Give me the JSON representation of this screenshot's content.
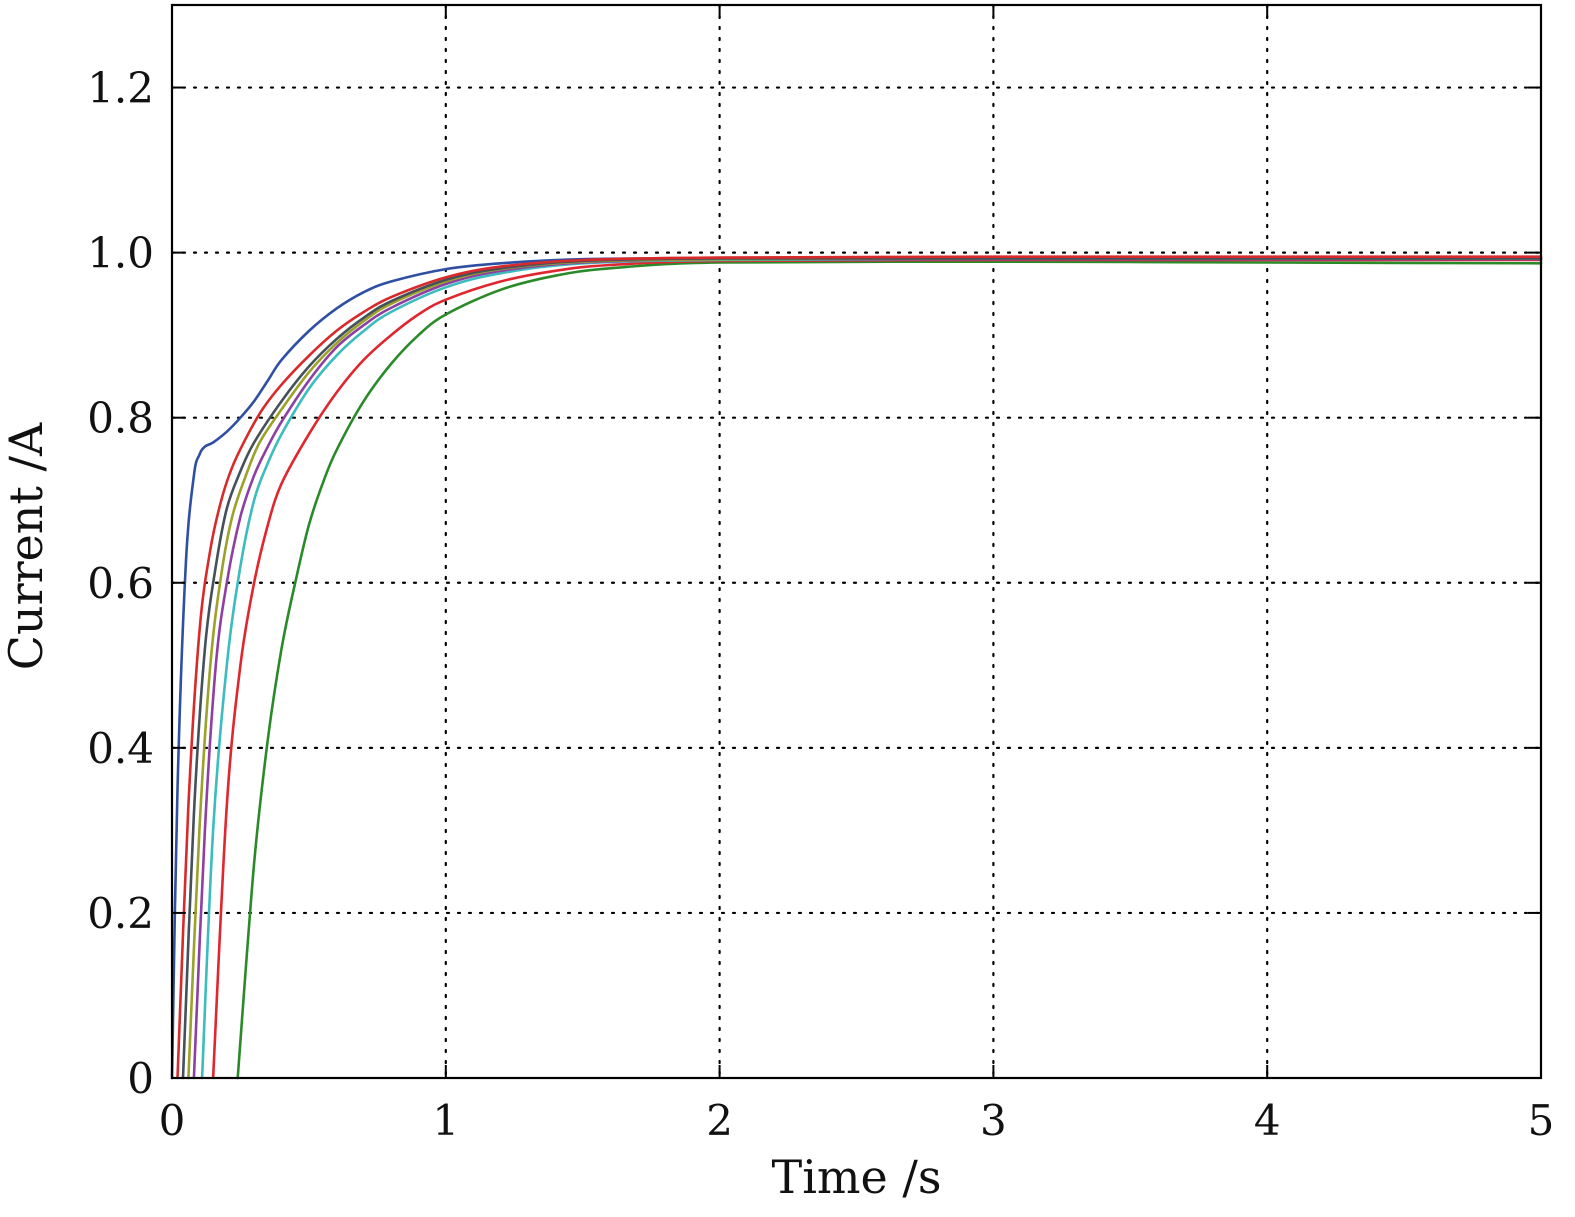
{
  "chart_data": {
    "type": "line",
    "title": "",
    "xlabel": "Time /s",
    "ylabel": "Current /A",
    "xlim": [
      0,
      5
    ],
    "ylim": [
      0,
      1.3
    ],
    "xticks": [
      0,
      1,
      2,
      3,
      4,
      5
    ],
    "xtick_labels": [
      "0",
      "1",
      "2",
      "3",
      "4",
      "5"
    ],
    "yticks": [
      0,
      0.2,
      0.4,
      0.6,
      0.8,
      1.0,
      1.2
    ],
    "ytick_labels": [
      "0",
      "0.2",
      "0.4",
      "0.6",
      "0.8",
      "1.0",
      "1.2"
    ],
    "grid": true,
    "legend": "none",
    "series": [
      {
        "color": "#2f4fa3",
        "x": [
          0,
          0.02,
          0.05,
          0.08,
          0.1,
          0.12,
          0.15,
          0.2,
          0.25,
          0.3,
          0.35,
          0.4,
          0.5,
          0.6,
          0.7,
          0.8,
          1.0,
          1.2,
          1.5,
          2.0,
          3.0,
          4.0,
          5.0
        ],
        "y": [
          0,
          0.35,
          0.62,
          0.73,
          0.755,
          0.765,
          0.77,
          0.783,
          0.8,
          0.82,
          0.845,
          0.87,
          0.905,
          0.932,
          0.952,
          0.965,
          0.98,
          0.987,
          0.992,
          0.993,
          0.993,
          0.993,
          0.993
        ]
      },
      {
        "color": "#2a8a2a",
        "x": [
          0.24,
          0.3,
          0.35,
          0.4,
          0.45,
          0.5,
          0.55,
          0.6,
          0.7,
          0.8,
          0.9,
          1.0,
          1.2,
          1.4,
          1.6,
          2.0,
          3.0,
          4.0,
          5.0
        ],
        "y": [
          0,
          0.26,
          0.41,
          0.52,
          0.6,
          0.67,
          0.72,
          0.76,
          0.82,
          0.865,
          0.9,
          0.925,
          0.955,
          0.972,
          0.981,
          0.988,
          0.989,
          0.988,
          0.987
        ]
      },
      {
        "color": "#e0262e",
        "x": [
          0.15,
          0.2,
          0.25,
          0.3,
          0.35,
          0.4,
          0.5,
          0.6,
          0.7,
          0.8,
          0.9,
          1.0,
          1.2,
          1.4,
          1.6,
          2.0,
          3.0,
          4.0,
          5.0
        ],
        "y": [
          0,
          0.33,
          0.5,
          0.6,
          0.67,
          0.72,
          0.78,
          0.83,
          0.87,
          0.9,
          0.925,
          0.943,
          0.965,
          0.978,
          0.985,
          0.99,
          0.991,
          0.991,
          0.991
        ]
      },
      {
        "color": "#3cbcbc",
        "x": [
          0.11,
          0.15,
          0.2,
          0.25,
          0.3,
          0.35,
          0.4,
          0.5,
          0.6,
          0.7,
          0.8,
          1.0,
          1.2,
          1.5,
          2.0,
          3.0,
          4.0,
          5.0
        ],
        "y": [
          0,
          0.3,
          0.5,
          0.62,
          0.7,
          0.745,
          0.78,
          0.835,
          0.875,
          0.905,
          0.928,
          0.958,
          0.975,
          0.987,
          0.991,
          0.992,
          0.992,
          0.992
        ]
      },
      {
        "color": "#8e3fa3",
        "x": [
          0.08,
          0.12,
          0.16,
          0.2,
          0.25,
          0.3,
          0.35,
          0.4,
          0.5,
          0.6,
          0.7,
          0.8,
          1.0,
          1.2,
          1.5,
          2.0,
          3.0,
          4.0,
          5.0
        ],
        "y": [
          0,
          0.3,
          0.5,
          0.6,
          0.68,
          0.73,
          0.765,
          0.795,
          0.845,
          0.885,
          0.912,
          0.933,
          0.962,
          0.978,
          0.988,
          0.992,
          0.992,
          0.992,
          0.992
        ]
      },
      {
        "color": "#9aa22a",
        "x": [
          0.06,
          0.1,
          0.14,
          0.18,
          0.22,
          0.27,
          0.32,
          0.4,
          0.5,
          0.6,
          0.7,
          0.8,
          1.0,
          1.2,
          1.5,
          2.0,
          3.0,
          4.0,
          5.0
        ],
        "y": [
          0,
          0.3,
          0.5,
          0.61,
          0.68,
          0.73,
          0.77,
          0.81,
          0.855,
          0.89,
          0.917,
          0.938,
          0.965,
          0.98,
          0.989,
          0.992,
          0.993,
          0.993,
          0.993
        ]
      },
      {
        "color": "#44505a",
        "x": [
          0.04,
          0.08,
          0.12,
          0.16,
          0.2,
          0.25,
          0.3,
          0.4,
          0.5,
          0.6,
          0.7,
          0.8,
          1.0,
          1.2,
          1.5,
          2.0,
          3.0,
          4.0,
          5.0
        ],
        "y": [
          0,
          0.32,
          0.52,
          0.62,
          0.69,
          0.735,
          0.77,
          0.82,
          0.862,
          0.895,
          0.921,
          0.941,
          0.967,
          0.981,
          0.99,
          0.993,
          0.993,
          0.993,
          0.993
        ]
      },
      {
        "color": "#d82a2a",
        "x": [
          0.02,
          0.06,
          0.1,
          0.14,
          0.18,
          0.22,
          0.27,
          0.33,
          0.4,
          0.5,
          0.6,
          0.7,
          0.8,
          1.0,
          1.2,
          1.5,
          2.0,
          3.0,
          4.0,
          5.0
        ],
        "y": [
          0,
          0.33,
          0.54,
          0.64,
          0.7,
          0.74,
          0.775,
          0.81,
          0.84,
          0.875,
          0.905,
          0.928,
          0.946,
          0.97,
          0.983,
          0.991,
          0.994,
          0.995,
          0.995,
          0.995
        ]
      }
    ]
  }
}
